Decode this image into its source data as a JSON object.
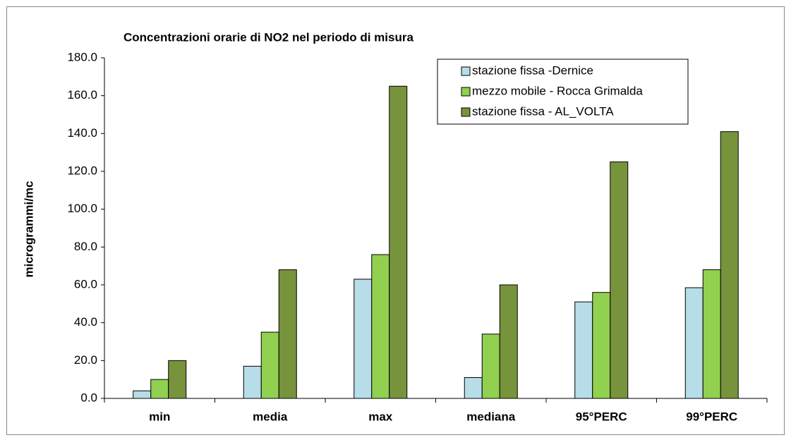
{
  "chart_data": {
    "type": "bar",
    "title": "Concentrazioni orarie di NO2 nel periodo  di misura",
    "y_label": "microgrammi/mc",
    "categories": [
      "min",
      "media",
      "max",
      "mediana",
      "95°PERC",
      "99°PERC"
    ],
    "series": [
      {
        "name": "stazione fissa -Dernice",
        "color": "#b7dde8",
        "values": [
          4,
          17,
          63,
          11,
          51,
          58.5
        ]
      },
      {
        "name": "mezzo mobile - Rocca Grimalda",
        "color": "#92d050",
        "values": [
          10,
          35,
          76,
          34,
          56,
          68
        ]
      },
      {
        "name": "stazione fissa - AL_VOLTA",
        "color": "#77933c",
        "values": [
          20,
          68,
          165,
          60,
          125,
          141
        ]
      }
    ],
    "ylim": [
      0,
      180
    ],
    "yticks": [
      {
        "value": 0,
        "label": "0.0"
      },
      {
        "value": 20,
        "label": "20.0"
      },
      {
        "value": 40,
        "label": "40.0"
      },
      {
        "value": 60,
        "label": "60.0"
      },
      {
        "value": 80,
        "label": "80.0"
      },
      {
        "value": 100,
        "label": "100.0"
      },
      {
        "value": 120,
        "label": "120.0"
      },
      {
        "value": 140,
        "label": "140.0"
      },
      {
        "value": 160,
        "label": "160.0"
      },
      {
        "value": 180,
        "label": "180.0"
      }
    ],
    "legend": "top-right"
  }
}
